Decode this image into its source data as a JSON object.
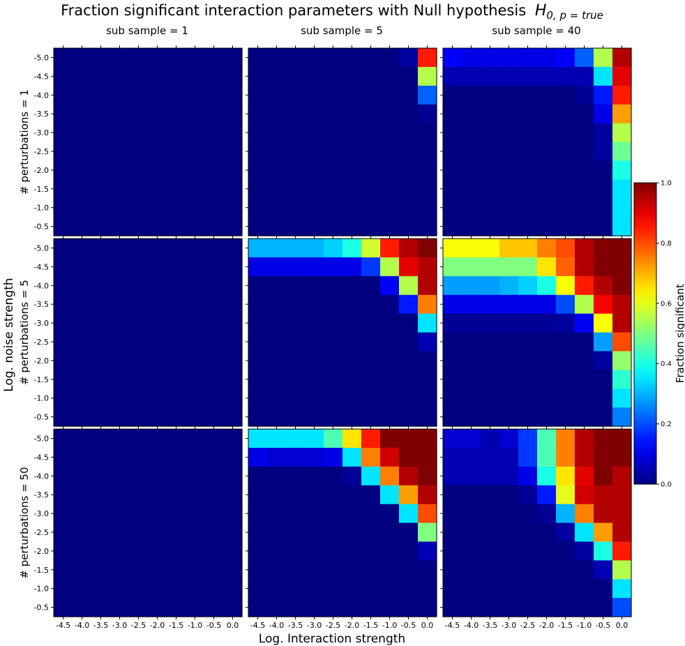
{
  "chart_data": {
    "type": "heatmap",
    "title": "Fraction significant interaction parameters with Null hypothesis",
    "title_math": "H",
    "title_math_sub": "0, p = true",
    "xlabel": "Log. Interaction strength",
    "ylabel": "Log. noise strength",
    "column_titles": [
      "sub sample = 1",
      "sub sample = 5",
      "sub sample = 40"
    ],
    "row_titles": [
      "# perturbations = 1",
      "# perturbations = 5",
      "# perturbations = 50"
    ],
    "x_tick_labels": [
      "-4.5",
      "-4.0",
      "-3.5",
      "-3.0",
      "-2.5",
      "-2.0",
      "-1.5",
      "-1.0",
      "-0.5",
      "0.0"
    ],
    "y_tick_labels": [
      "-5.0",
      "-4.5",
      "-4.0",
      "-3.5",
      "-3.0",
      "-2.5",
      "-2.0",
      "-1.5",
      "-1.0",
      "-0.5"
    ],
    "colormap": "jet",
    "colorbar": {
      "label": "Fraction significant",
      "ticks": [
        "0.0",
        "0.2",
        "0.4",
        "0.6",
        "0.8",
        "1.0"
      ],
      "range": [
        0,
        1
      ]
    },
    "panels": [
      [
        [
          [
            0,
            0,
            0,
            0,
            0,
            0,
            0,
            0,
            0,
            0
          ],
          [
            0,
            0,
            0,
            0,
            0,
            0,
            0,
            0,
            0,
            0
          ],
          [
            0,
            0,
            0,
            0,
            0,
            0,
            0,
            0,
            0,
            0
          ],
          [
            0,
            0,
            0,
            0,
            0,
            0,
            0,
            0,
            0,
            0
          ],
          [
            0,
            0,
            0,
            0,
            0,
            0,
            0,
            0,
            0,
            0
          ],
          [
            0,
            0,
            0,
            0,
            0,
            0,
            0,
            0,
            0,
            0
          ],
          [
            0,
            0,
            0,
            0,
            0,
            0,
            0,
            0,
            0,
            0
          ],
          [
            0,
            0,
            0,
            0,
            0,
            0,
            0,
            0,
            0,
            0
          ],
          [
            0,
            0,
            0,
            0,
            0,
            0,
            0,
            0,
            0,
            0
          ],
          [
            0,
            0,
            0,
            0,
            0,
            0,
            0,
            0,
            0,
            0
          ]
        ],
        [
          [
            0,
            0,
            0,
            0,
            0,
            0,
            0,
            0,
            0.03,
            0.85
          ],
          [
            0,
            0,
            0,
            0,
            0,
            0,
            0,
            0,
            0,
            0.55
          ],
          [
            0,
            0,
            0,
            0,
            0,
            0,
            0,
            0,
            0,
            0.22
          ],
          [
            0,
            0,
            0,
            0,
            0,
            0,
            0,
            0,
            0,
            0.02
          ],
          [
            0,
            0,
            0,
            0,
            0,
            0,
            0,
            0,
            0,
            0
          ],
          [
            0,
            0,
            0,
            0,
            0,
            0,
            0,
            0,
            0,
            0
          ],
          [
            0,
            0,
            0,
            0,
            0,
            0,
            0,
            0,
            0,
            0
          ],
          [
            0,
            0,
            0,
            0,
            0,
            0,
            0,
            0,
            0,
            0
          ],
          [
            0,
            0,
            0,
            0,
            0,
            0,
            0,
            0,
            0,
            0
          ],
          [
            0,
            0,
            0,
            0,
            0,
            0,
            0,
            0,
            0,
            0
          ]
        ],
        [
          [
            0.12,
            0.1,
            0.1,
            0.1,
            0.1,
            0.1,
            0.12,
            0.22,
            0.55,
            0.95
          ],
          [
            0.05,
            0.05,
            0.05,
            0.05,
            0.05,
            0.05,
            0.05,
            0.05,
            0.35,
            0.9
          ],
          [
            0,
            0,
            0,
            0,
            0,
            0,
            0,
            0.02,
            0.15,
            0.85
          ],
          [
            0,
            0,
            0,
            0,
            0,
            0,
            0,
            0,
            0.1,
            0.72
          ],
          [
            0,
            0,
            0,
            0,
            0,
            0,
            0,
            0,
            0.03,
            0.55
          ],
          [
            0,
            0,
            0,
            0,
            0,
            0,
            0,
            0,
            0.03,
            0.48
          ],
          [
            0,
            0,
            0,
            0,
            0,
            0,
            0,
            0,
            0,
            0.4
          ],
          [
            0,
            0,
            0,
            0,
            0,
            0,
            0,
            0,
            0,
            0.35
          ],
          [
            0,
            0,
            0,
            0,
            0,
            0,
            0,
            0,
            0,
            0.35
          ],
          [
            0,
            0,
            0,
            0,
            0,
            0,
            0,
            0,
            0,
            0.35
          ]
        ]
      ],
      [
        [
          [
            0,
            0,
            0,
            0,
            0,
            0,
            0,
            0,
            0,
            0
          ],
          [
            0,
            0,
            0,
            0,
            0,
            0,
            0,
            0,
            0,
            0
          ],
          [
            0,
            0,
            0,
            0,
            0,
            0,
            0,
            0,
            0,
            0
          ],
          [
            0,
            0,
            0,
            0,
            0,
            0,
            0,
            0,
            0,
            0
          ],
          [
            0,
            0,
            0,
            0,
            0,
            0,
            0,
            0,
            0,
            0
          ],
          [
            0,
            0,
            0,
            0,
            0,
            0,
            0,
            0,
            0,
            0
          ],
          [
            0,
            0,
            0,
            0,
            0,
            0,
            0,
            0,
            0,
            0
          ],
          [
            0,
            0,
            0,
            0,
            0,
            0,
            0,
            0,
            0,
            0
          ],
          [
            0,
            0,
            0,
            0,
            0,
            0,
            0,
            0,
            0,
            0
          ],
          [
            0,
            0,
            0,
            0,
            0,
            0,
            0,
            0,
            0,
            0
          ]
        ],
        [
          [
            0.3,
            0.3,
            0.3,
            0.3,
            0.33,
            0.4,
            0.58,
            0.85,
            0.95,
            1.0
          ],
          [
            0.1,
            0.1,
            0.1,
            0.1,
            0.1,
            0.1,
            0.18,
            0.55,
            0.9,
            0.95
          ],
          [
            0,
            0,
            0,
            0,
            0,
            0,
            0,
            0.12,
            0.55,
            0.95
          ],
          [
            0,
            0,
            0,
            0,
            0,
            0,
            0,
            0,
            0.15,
            0.75
          ],
          [
            0,
            0,
            0,
            0,
            0,
            0,
            0,
            0,
            0,
            0.35
          ],
          [
            0,
            0,
            0,
            0,
            0,
            0,
            0,
            0,
            0,
            0.05
          ],
          [
            0,
            0,
            0,
            0,
            0,
            0,
            0,
            0,
            0,
            0
          ],
          [
            0,
            0,
            0,
            0,
            0,
            0,
            0,
            0,
            0,
            0
          ],
          [
            0,
            0,
            0,
            0,
            0,
            0,
            0,
            0,
            0,
            0
          ],
          [
            0,
            0,
            0,
            0,
            0,
            0,
            0,
            0,
            0,
            0
          ]
        ],
        [
          [
            0.62,
            0.62,
            0.62,
            0.68,
            0.68,
            0.75,
            0.8,
            0.95,
            1.0,
            1.0
          ],
          [
            0.5,
            0.5,
            0.5,
            0.5,
            0.5,
            0.65,
            0.78,
            0.95,
            1.0,
            1.0
          ],
          [
            0.28,
            0.28,
            0.28,
            0.3,
            0.33,
            0.4,
            0.62,
            0.85,
            0.95,
            1.0
          ],
          [
            0.1,
            0.1,
            0.1,
            0.1,
            0.1,
            0.1,
            0.2,
            0.55,
            0.88,
            0.95
          ],
          [
            0.02,
            0.02,
            0.02,
            0.02,
            0.02,
            0.02,
            0.03,
            0.12,
            0.62,
            0.95
          ],
          [
            0,
            0,
            0,
            0,
            0,
            0,
            0,
            0,
            0.28,
            0.8
          ],
          [
            0,
            0,
            0,
            0,
            0,
            0,
            0,
            0,
            0.03,
            0.52
          ],
          [
            0,
            0,
            0,
            0,
            0,
            0,
            0,
            0,
            0,
            0.42
          ],
          [
            0,
            0,
            0,
            0,
            0,
            0,
            0,
            0,
            0,
            0.35
          ],
          [
            0,
            0,
            0,
            0,
            0,
            0,
            0,
            0,
            0,
            0.25
          ]
        ]
      ],
      [
        [
          [
            0,
            0,
            0,
            0,
            0,
            0,
            0,
            0,
            0,
            0
          ],
          [
            0,
            0,
            0,
            0,
            0,
            0,
            0,
            0,
            0,
            0
          ],
          [
            0,
            0,
            0,
            0,
            0,
            0,
            0,
            0,
            0,
            0
          ],
          [
            0,
            0,
            0,
            0,
            0,
            0,
            0,
            0,
            0,
            0
          ],
          [
            0,
            0,
            0,
            0,
            0,
            0,
            0,
            0,
            0,
            0
          ],
          [
            0,
            0,
            0,
            0,
            0,
            0,
            0,
            0,
            0,
            0
          ],
          [
            0,
            0,
            0,
            0,
            0,
            0,
            0,
            0,
            0,
            0
          ],
          [
            0,
            0,
            0,
            0,
            0,
            0,
            0,
            0,
            0,
            0
          ],
          [
            0,
            0,
            0,
            0,
            0,
            0,
            0,
            0,
            0,
            0
          ],
          [
            0,
            0,
            0,
            0,
            0,
            0,
            0,
            0,
            0,
            0
          ]
        ],
        [
          [
            0.35,
            0.35,
            0.35,
            0.35,
            0.45,
            0.65,
            0.85,
            1.0,
            1.0,
            1.0
          ],
          [
            0.1,
            0.08,
            0.08,
            0.08,
            0.1,
            0.35,
            0.75,
            0.92,
            1.0,
            1.0
          ],
          [
            0,
            0,
            0,
            0,
            0,
            0.02,
            0.35,
            0.75,
            0.95,
            1.0
          ],
          [
            0,
            0,
            0,
            0,
            0,
            0,
            0,
            0.35,
            0.72,
            0.95
          ],
          [
            0,
            0,
            0,
            0,
            0,
            0,
            0,
            0,
            0.35,
            0.8
          ],
          [
            0,
            0,
            0,
            0,
            0,
            0,
            0,
            0,
            0,
            0.5
          ],
          [
            0,
            0,
            0,
            0,
            0,
            0,
            0,
            0,
            0,
            0.05
          ],
          [
            0,
            0,
            0,
            0,
            0,
            0,
            0,
            0,
            0,
            0
          ],
          [
            0,
            0,
            0,
            0,
            0,
            0,
            0,
            0,
            0,
            0
          ],
          [
            0,
            0,
            0,
            0,
            0,
            0,
            0,
            0,
            0,
            0
          ]
        ],
        [
          [
            0.08,
            0.08,
            0.05,
            0.08,
            0.18,
            0.45,
            0.75,
            0.95,
            1.0,
            1.0
          ],
          [
            0.05,
            0.05,
            0.05,
            0.05,
            0.18,
            0.45,
            0.75,
            0.95,
            1.0,
            1.0
          ],
          [
            0.05,
            0.05,
            0.05,
            0.05,
            0.1,
            0.4,
            0.65,
            0.9,
            1.0,
            0.95
          ],
          [
            0,
            0,
            0,
            0,
            0.02,
            0.15,
            0.6,
            0.92,
            0.95,
            0.95
          ],
          [
            0,
            0,
            0,
            0,
            0,
            0.02,
            0.3,
            0.75,
            0.95,
            0.95
          ],
          [
            0,
            0,
            0,
            0,
            0,
            0,
            0.03,
            0.35,
            0.72,
            0.95
          ],
          [
            0,
            0,
            0,
            0,
            0,
            0,
            0,
            0.03,
            0.4,
            0.85
          ],
          [
            0,
            0,
            0,
            0,
            0,
            0,
            0,
            0,
            0.05,
            0.55
          ],
          [
            0,
            0,
            0,
            0,
            0,
            0,
            0,
            0,
            0,
            0.35
          ],
          [
            0,
            0,
            0,
            0,
            0,
            0,
            0,
            0,
            0,
            0.2
          ]
        ]
      ]
    ]
  }
}
